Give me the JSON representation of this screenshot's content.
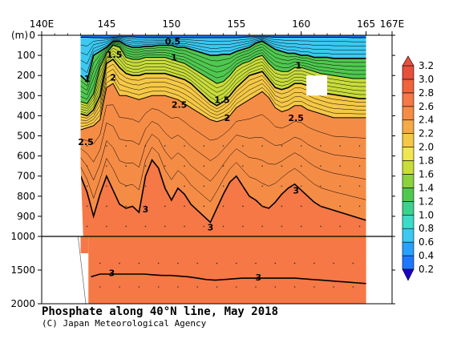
{
  "chart_data": {
    "type": "heatmap",
    "title": "Phosphate along 40°N line, May 2018",
    "credit": "(C) Japan Meteorological Agency",
    "xlabel": "",
    "ylabel": "(m)",
    "x_ticks": [
      "140E",
      "145",
      "150",
      "155",
      "160",
      "165",
      "167E"
    ],
    "x_tick_values": [
      140,
      145,
      150,
      155,
      160,
      165,
      167
    ],
    "xlim": [
      140,
      167
    ],
    "y_ticks_upper": [
      0,
      100,
      200,
      300,
      400,
      500,
      600,
      700,
      800,
      900,
      1000
    ],
    "y_ticks_lower": [
      1500,
      2000
    ],
    "ylim_upper": [
      0,
      1000
    ],
    "ylim_lower": [
      1000,
      2000
    ],
    "colorbar": {
      "levels": [
        "0.2",
        "0.4",
        "0.6",
        "0.8",
        "1.0",
        "1.2",
        "1.4",
        "1.6",
        "1.8",
        "2.0",
        "2.2",
        "2.4",
        "2.6",
        "2.8",
        "3.0",
        "3.2"
      ],
      "colors": [
        "#1e3cff",
        "#1e78ff",
        "#28a0ff",
        "#3cc8f0",
        "#3cdcc8",
        "#3cd28c",
        "#50c850",
        "#8cd23c",
        "#c8dc3c",
        "#f0e650",
        "#f5c846",
        "#f5aa46",
        "#f58c46",
        "#f57846",
        "#f0643c",
        "#e6503c"
      ]
    },
    "column_x": [
      143.0,
      143.5,
      144.0,
      144.5,
      145.0,
      145.5,
      146.0,
      146.5,
      147.0,
      147.5,
      148.0,
      148.5,
      149.0,
      149.5,
      150.0,
      150.5,
      151.0,
      151.5,
      152.0,
      152.5,
      153.0,
      153.5,
      154.0,
      154.5,
      155.0,
      155.5,
      156.0,
      156.5,
      157.0,
      157.5,
      158.0,
      158.5,
      159.0,
      159.5,
      160.0,
      160.5,
      161.0,
      161.5,
      162.0,
      162.5,
      163.0,
      163.5,
      164.0,
      164.5,
      165.0
    ],
    "contours_m": [
      {
        "level": 0.5,
        "depths": [
          10,
          10,
          12,
          12,
          14,
          10,
          8,
          8,
          8,
          10,
          10,
          10,
          10,
          10,
          12,
          12,
          12,
          12,
          12,
          12,
          12,
          12,
          12,
          12,
          12,
          10,
          8,
          8,
          8,
          8,
          10,
          10,
          10,
          10,
          10,
          10,
          10,
          10,
          10,
          10,
          10,
          10,
          12,
          12,
          12
        ]
      },
      {
        "level": 1.0,
        "depths": [
          200,
          230,
          100,
          80,
          60,
          30,
          30,
          50,
          60,
          60,
          55,
          55,
          50,
          50,
          50,
          60,
          60,
          70,
          80,
          90,
          100,
          100,
          95,
          95,
          80,
          70,
          60,
          40,
          30,
          50,
          70,
          80,
          90,
          90,
          100,
          100,
          110,
          110,
          110,
          115,
          115,
          115,
          115,
          115,
          115
        ]
      },
      {
        "level": 1.5,
        "depths": [
          330,
          340,
          290,
          160,
          90,
          50,
          60,
          110,
          120,
          120,
          110,
          110,
          110,
          110,
          120,
          130,
          140,
          160,
          180,
          200,
          220,
          240,
          230,
          200,
          160,
          140,
          130,
          110,
          100,
          140,
          170,
          180,
          180,
          160,
          160,
          170,
          180,
          190,
          195,
          200,
          205,
          210,
          215,
          215,
          215
        ]
      },
      {
        "level": 2.0,
        "depths": [
          390,
          400,
          370,
          300,
          140,
          120,
          160,
          190,
          200,
          200,
          190,
          190,
          190,
          190,
          200,
          210,
          220,
          240,
          270,
          300,
          330,
          350,
          330,
          300,
          260,
          230,
          200,
          190,
          180,
          220,
          260,
          270,
          260,
          240,
          240,
          250,
          270,
          280,
          290,
          295,
          300,
          305,
          310,
          315,
          315
        ]
      },
      {
        "level": 2.5,
        "depths": [
          470,
          460,
          450,
          420,
          260,
          240,
          300,
          300,
          310,
          320,
          310,
          300,
          300,
          300,
          310,
          320,
          340,
          360,
          380,
          400,
          420,
          430,
          420,
          400,
          360,
          340,
          320,
          300,
          280,
          310,
          360,
          380,
          370,
          350,
          350,
          370,
          380,
          390,
          400,
          410,
          410,
          410,
          410,
          410,
          410
        ]
      },
      {
        "level": 3.0,
        "depths": [
          700,
          780,
          900,
          790,
          700,
          770,
          840,
          860,
          850,
          880,
          700,
          620,
          660,
          760,
          820,
          760,
          790,
          840,
          870,
          900,
          930,
          860,
          790,
          730,
          700,
          750,
          800,
          820,
          850,
          860,
          830,
          790,
          760,
          740,
          770,
          800,
          830,
          850,
          860,
          870,
          880,
          890,
          900,
          910,
          920
        ]
      }
    ],
    "deep_contour_3_m": [
      1600,
      1560,
      1560,
      1560,
      1560,
      1560,
      1560,
      1570,
      1580,
      1580,
      1590,
      1600,
      1620,
      1640,
      1650,
      1640,
      1630,
      1620,
      1620,
      1620,
      1620,
      1620,
      1620,
      1620,
      1630,
      1640,
      1650,
      1660,
      1670,
      1680,
      1690,
      1700
    ],
    "contour_labels": [
      {
        "text": "0.5",
        "x": 150.1,
        "depth": 30
      },
      {
        "text": "1.5",
        "x": 145.6,
        "depth": 95
      },
      {
        "text": "1",
        "x": 150.2,
        "depth": 110
      },
      {
        "text": "1",
        "x": 143.5,
        "depth": 215
      },
      {
        "text": "2",
        "x": 145.5,
        "depth": 210
      },
      {
        "text": "1",
        "x": 159.8,
        "depth": 150
      },
      {
        "text": "1.5",
        "x": 153.9,
        "depth": 320
      },
      {
        "text": "2.5",
        "x": 150.6,
        "depth": 345
      },
      {
        "text": "2",
        "x": 154.3,
        "depth": 410
      },
      {
        "text": "2.5",
        "x": 159.6,
        "depth": 410
      },
      {
        "text": "2.5",
        "x": 143.4,
        "depth": 530
      },
      {
        "text": "3",
        "x": 148.0,
        "depth": 865
      },
      {
        "text": "3",
        "x": 159.6,
        "depth": 770
      },
      {
        "text": "3",
        "x": 153.0,
        "depth": 955
      },
      {
        "text": "3",
        "x": 145.4,
        "depth": 1540
      },
      {
        "text": "3",
        "x": 156.7,
        "depth": 1610
      }
    ]
  }
}
